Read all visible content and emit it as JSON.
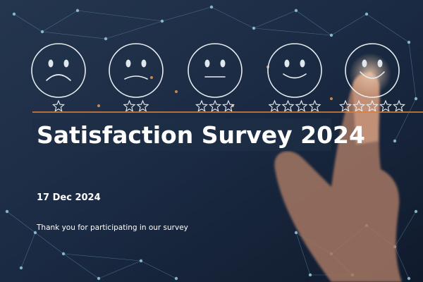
{
  "title": "Satisfaction Survey 2024",
  "date": "17 Dec 2024",
  "subtitle": "Thank you for participating in our survey"
}
